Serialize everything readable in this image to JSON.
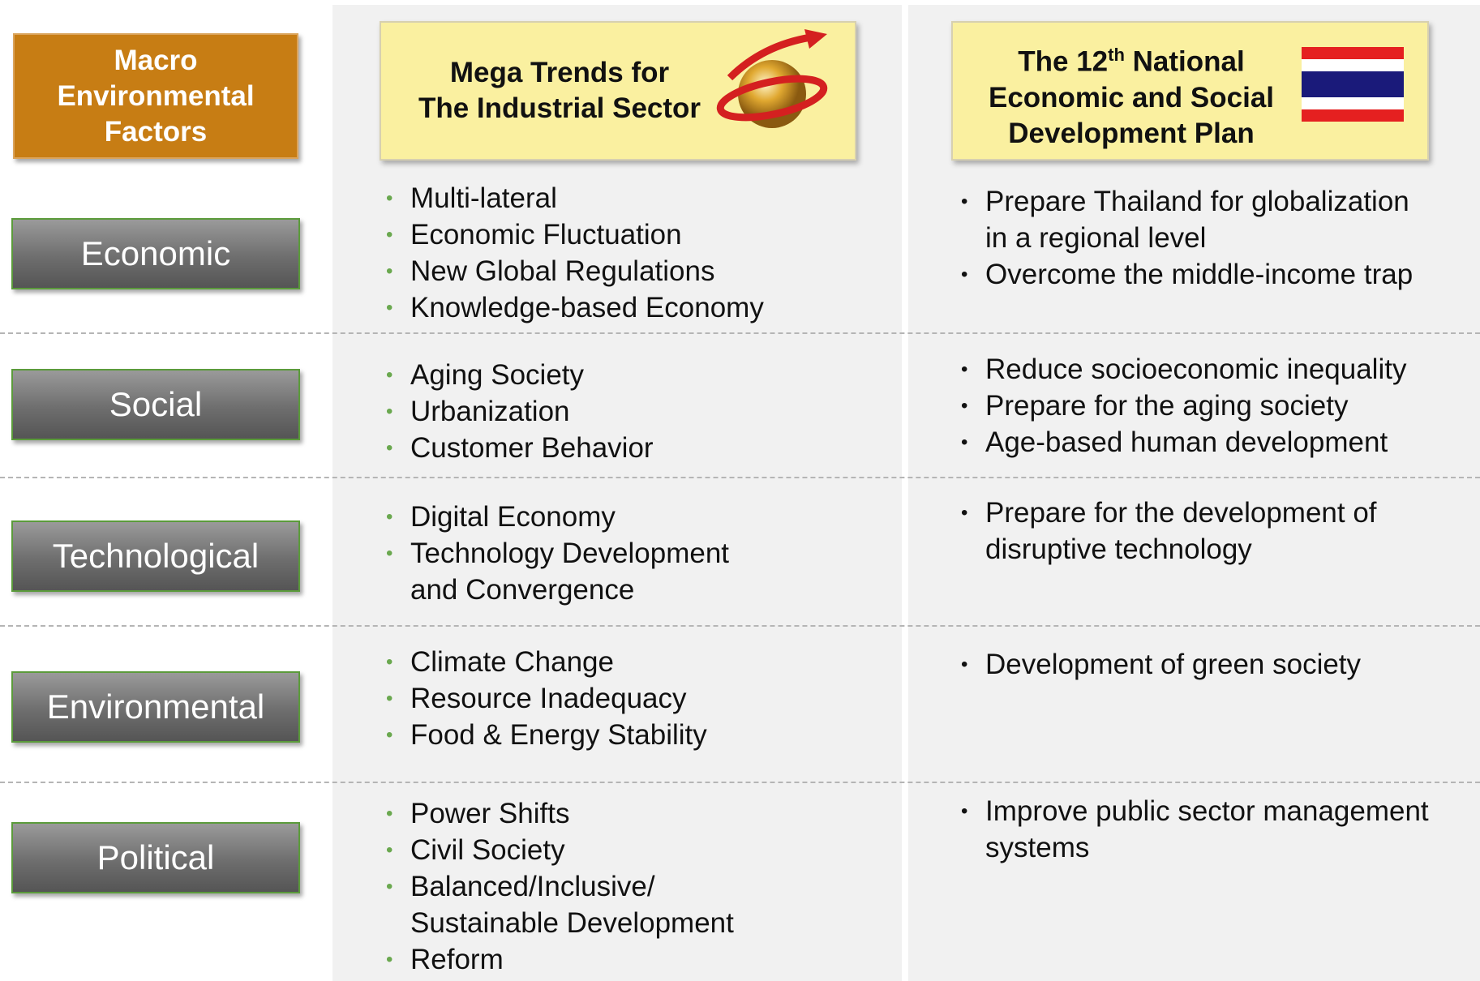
{
  "header": {
    "factors_title": "Macro Environmental Factors",
    "trends_title": [
      "Mega Trends for",
      "The Industrial Sector"
    ],
    "plan_title": {
      "pre": "The 12",
      "sup": "th",
      "post": "National",
      "lines": [
        "Economic and Social",
        "Development Plan"
      ]
    }
  },
  "rows": [
    {
      "factor": "Economic",
      "trends": [
        [
          "Multi-lateral"
        ],
        [
          "Economic Fluctuation"
        ],
        [
          "New Global Regulations"
        ],
        [
          "Knowledge-based Economy"
        ]
      ],
      "plan": [
        [
          "Prepare Thailand for globalization",
          "in a regional level"
        ],
        [
          "Overcome the middle-income trap"
        ]
      ]
    },
    {
      "factor": "Social",
      "trends": [
        [
          "Aging Society"
        ],
        [
          "Urbanization"
        ],
        [
          "Customer Behavior"
        ]
      ],
      "plan": [
        [
          "Reduce socioeconomic inequality"
        ],
        [
          "Prepare for the aging society"
        ],
        [
          "Age-based human development"
        ]
      ]
    },
    {
      "factor": "Technological",
      "trends": [
        [
          "Digital Economy"
        ],
        [
          "Technology Development",
          "and Convergence"
        ]
      ],
      "plan": [
        [
          "Prepare for the development of",
          "disruptive technology"
        ]
      ]
    },
    {
      "factor": "Environmental",
      "trends": [
        [
          "Climate Change"
        ],
        [
          "Resource Inadequacy"
        ],
        [
          "Food & Energy Stability"
        ]
      ],
      "plan": [
        [
          "Development of green society"
        ]
      ]
    },
    {
      "factor": "Political",
      "trends": [
        [
          "Power Shifts"
        ],
        [
          "Civil Society"
        ],
        [
          "Balanced/Inclusive/",
          "Sustainable Development"
        ],
        [
          "Reform"
        ]
      ],
      "plan": [
        [
          "Improve public sector management",
          "systems"
        ]
      ]
    }
  ]
}
